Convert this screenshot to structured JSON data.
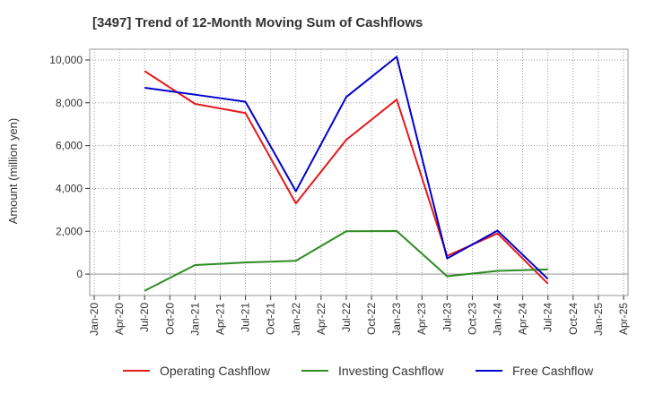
{
  "chart_data": {
    "type": "line",
    "title": "[3497]  Trend of 12-Month Moving Sum of Cashflows",
    "xlabel": "",
    "ylabel": "Amount (million yen)",
    "x_ticks": [
      "Jan-20",
      "Apr-20",
      "Jul-20",
      "Oct-20",
      "Jan-21",
      "Apr-21",
      "Jul-21",
      "Oct-21",
      "Jan-22",
      "Apr-22",
      "Jul-22",
      "Oct-22",
      "Jan-23",
      "Apr-23",
      "Jul-23",
      "Oct-23",
      "Jan-24",
      "Apr-24",
      "Jul-24",
      "Oct-24",
      "Jan-25",
      "Apr-25"
    ],
    "y_ticks": [
      0,
      2000,
      4000,
      6000,
      8000,
      10000
    ],
    "y_tick_labels": [
      "0",
      "2,000",
      "4,000",
      "6,000",
      "8,000",
      "10,000"
    ],
    "ylim": [
      -1000,
      10500
    ],
    "grid": true,
    "legend_position": "bottom",
    "series": [
      {
        "name": "Operating Cashflow",
        "color": "#e41a1c",
        "points": [
          {
            "x": "Jul-20",
            "y": 9480
          },
          {
            "x": "Jan-21",
            "y": 7950
          },
          {
            "x": "Jul-21",
            "y": 7520
          },
          {
            "x": "Jan-22",
            "y": 3300
          },
          {
            "x": "Jul-22",
            "y": 6270
          },
          {
            "x": "Jan-23",
            "y": 8150
          },
          {
            "x": "Jul-23",
            "y": 850
          },
          {
            "x": "Jan-24",
            "y": 1900
          },
          {
            "x": "Jul-24",
            "y": -450
          }
        ]
      },
      {
        "name": "Investing Cashflow",
        "color": "#2e8b22",
        "points": [
          {
            "x": "Jul-20",
            "y": -780
          },
          {
            "x": "Jan-21",
            "y": 420
          },
          {
            "x": "Jul-21",
            "y": 540
          },
          {
            "x": "Jan-22",
            "y": 620
          },
          {
            "x": "Jul-22",
            "y": 2000
          },
          {
            "x": "Jan-23",
            "y": 2010
          },
          {
            "x": "Jul-23",
            "y": -100
          },
          {
            "x": "Jan-24",
            "y": 150
          },
          {
            "x": "Jul-24",
            "y": 220
          }
        ]
      },
      {
        "name": "Free Cashflow",
        "color": "#0000cc",
        "points": [
          {
            "x": "Jul-20",
            "y": 8700
          },
          {
            "x": "Jan-21",
            "y": 8380
          },
          {
            "x": "Jul-21",
            "y": 8050
          },
          {
            "x": "Jan-22",
            "y": 3870
          },
          {
            "x": "Jul-22",
            "y": 8270
          },
          {
            "x": "Jan-23",
            "y": 10150
          },
          {
            "x": "Jul-23",
            "y": 730
          },
          {
            "x": "Jan-24",
            "y": 2030
          },
          {
            "x": "Jul-24",
            "y": -230
          }
        ]
      }
    ]
  }
}
